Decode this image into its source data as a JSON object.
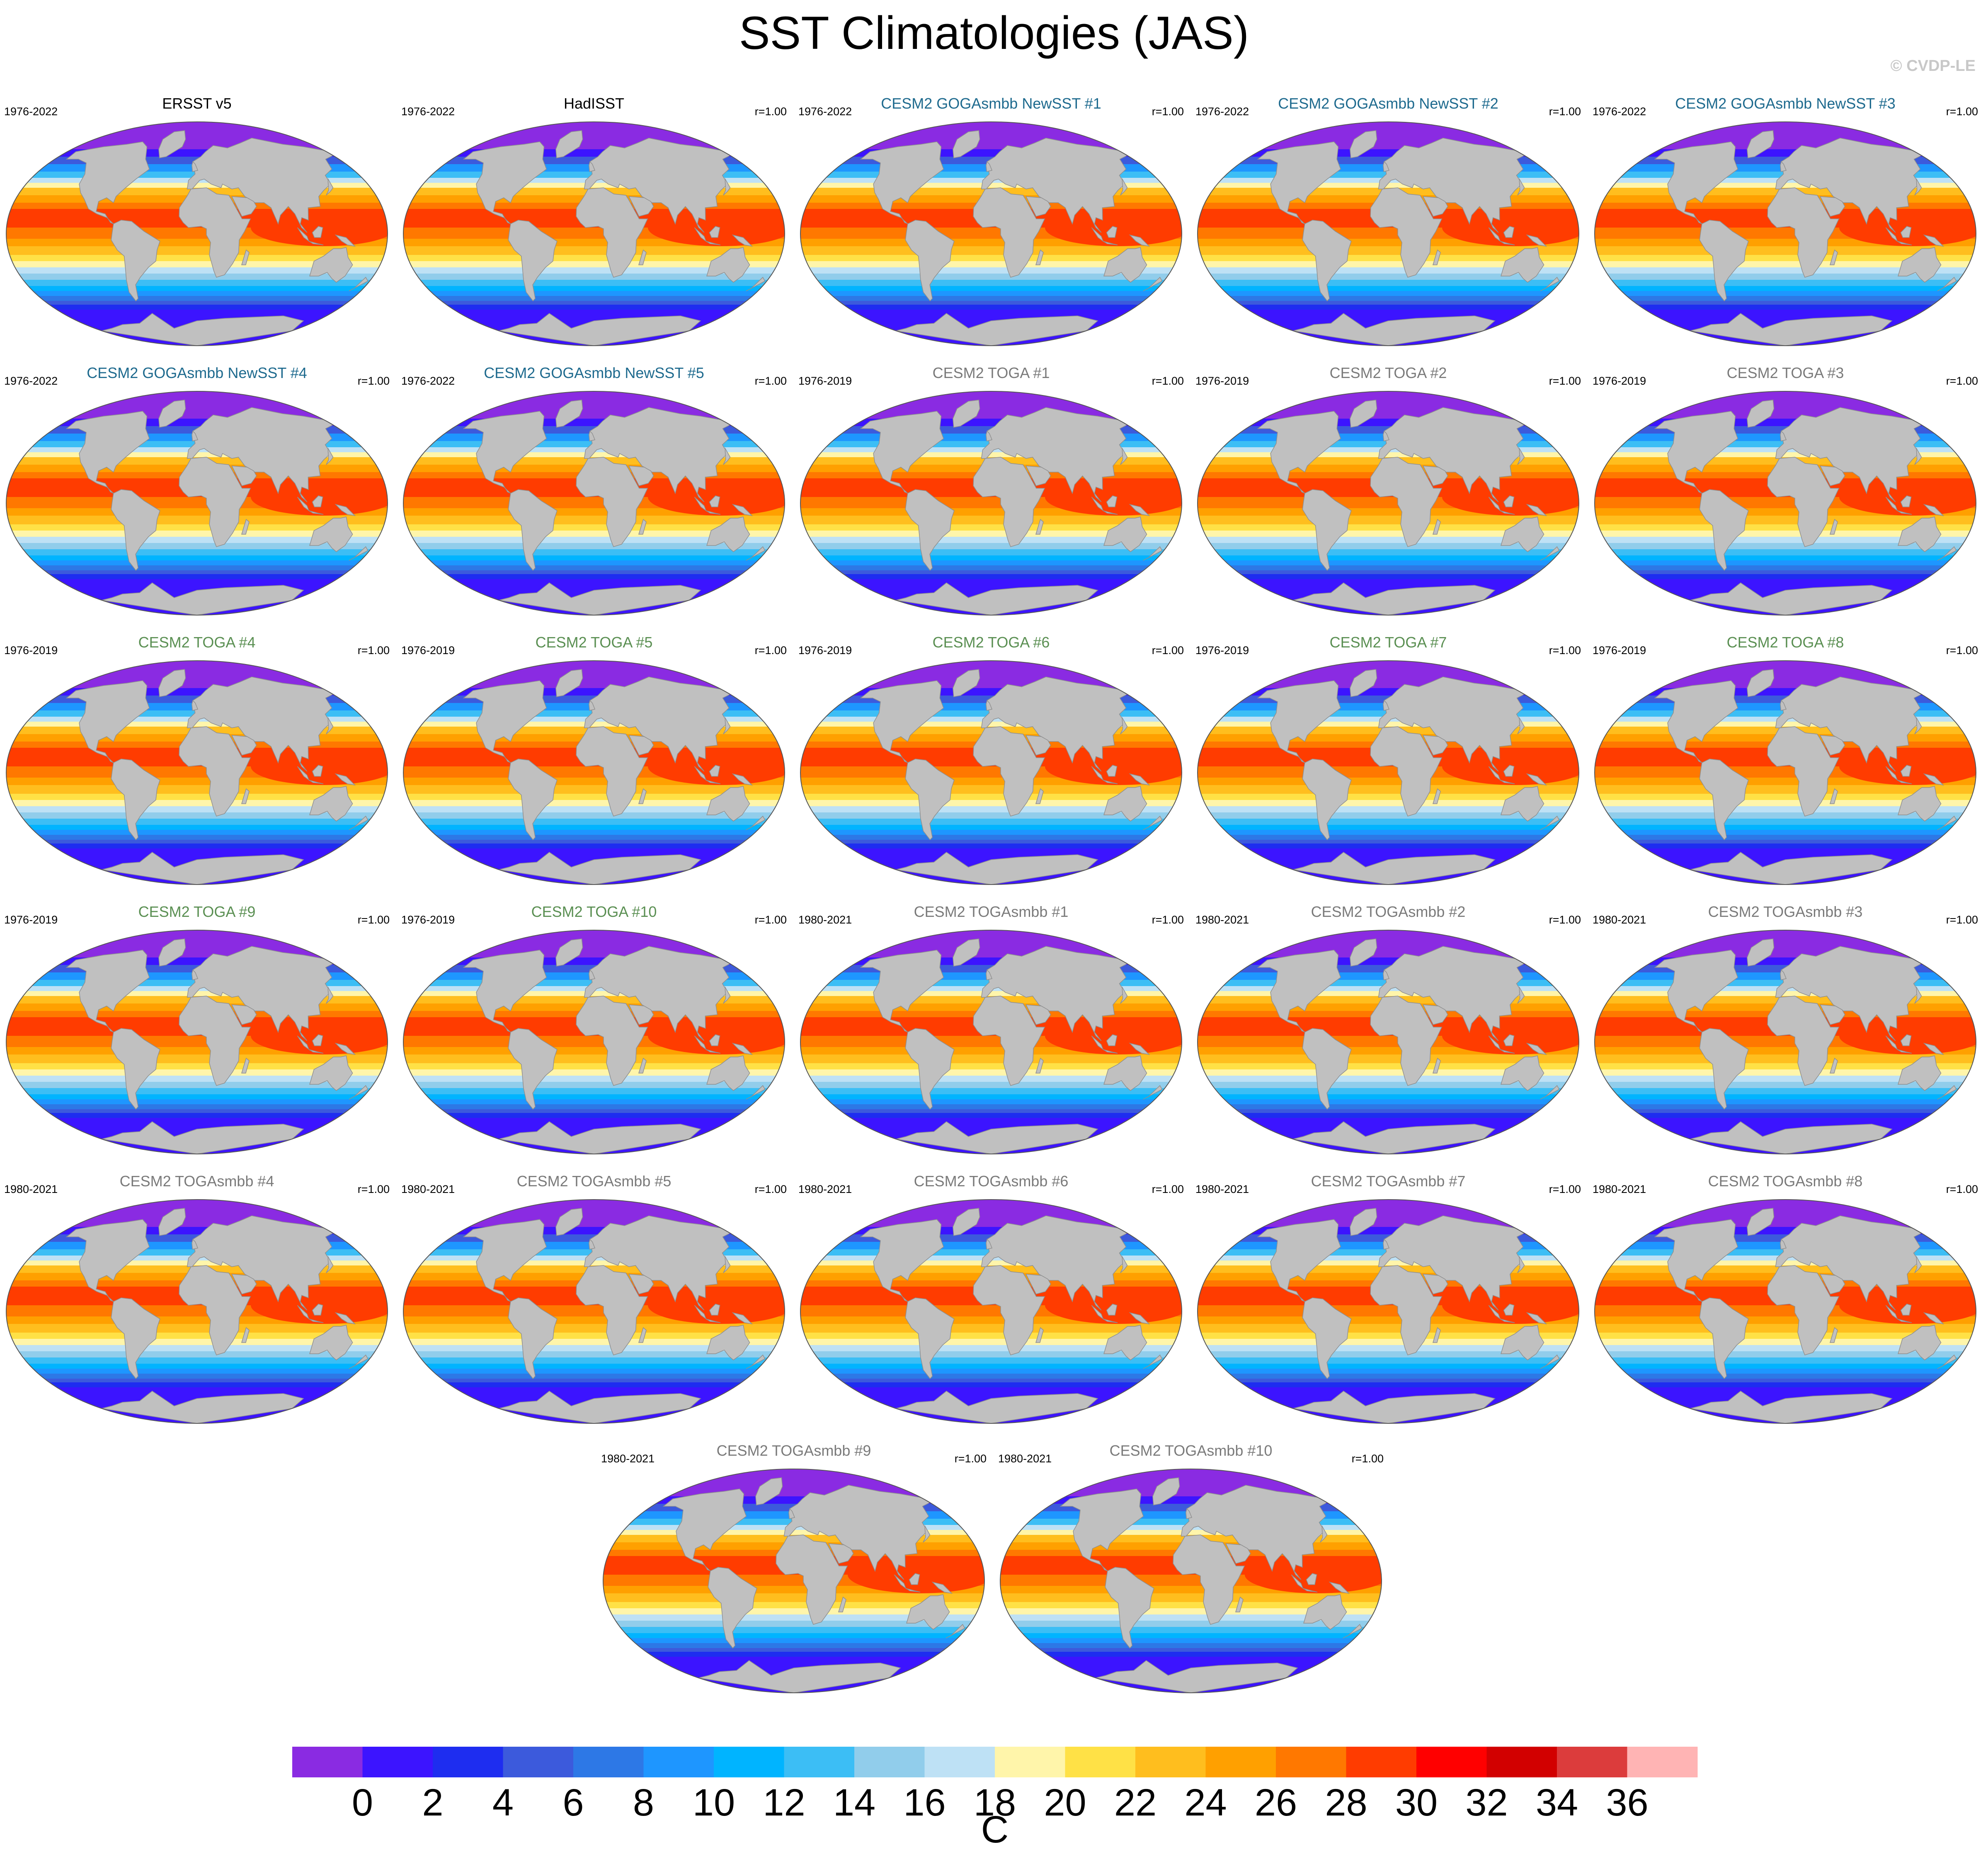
{
  "title": "SST Climatologies (JAS)",
  "watermark": "© CVDP-LE",
  "title_colors": {
    "observations": "#000000",
    "goga": "#1e6a8e",
    "toga": "#5a8f52",
    "togasmbb": "#7a7a7a"
  },
  "panels": [
    {
      "title": "ERSST v5",
      "group": "observations",
      "period": "1976-2022",
      "corr": ""
    },
    {
      "title": "HadISST",
      "group": "observations",
      "period": "1976-2022",
      "corr": "r=1.00"
    },
    {
      "title": "CESM2 GOGAsmbb NewSST #1",
      "group": "goga",
      "period": "1976-2022",
      "corr": "r=1.00"
    },
    {
      "title": "CESM2 GOGAsmbb NewSST #2",
      "group": "goga",
      "period": "1976-2022",
      "corr": "r=1.00"
    },
    {
      "title": "CESM2 GOGAsmbb NewSST #3",
      "group": "goga",
      "period": "1976-2022",
      "corr": "r=1.00"
    },
    {
      "title": "CESM2 GOGAsmbb NewSST #4",
      "group": "goga",
      "period": "1976-2022",
      "corr": "r=1.00"
    },
    {
      "title": "CESM2 GOGAsmbb NewSST #5",
      "group": "goga",
      "period": "1976-2022",
      "corr": "r=1.00"
    },
    {
      "title": "CESM2 TOGA #1",
      "group": "togasmbb",
      "period": "1976-2019",
      "corr": "r=1.00"
    },
    {
      "title": "CESM2 TOGA #2",
      "group": "togasmbb",
      "period": "1976-2019",
      "corr": "r=1.00"
    },
    {
      "title": "CESM2 TOGA #3",
      "group": "togasmbb",
      "period": "1976-2019",
      "corr": "r=1.00"
    },
    {
      "title": "CESM2 TOGA #4",
      "group": "toga",
      "period": "1976-2019",
      "corr": "r=1.00"
    },
    {
      "title": "CESM2 TOGA #5",
      "group": "toga",
      "period": "1976-2019",
      "corr": "r=1.00"
    },
    {
      "title": "CESM2 TOGA #6",
      "group": "toga",
      "period": "1976-2019",
      "corr": "r=1.00"
    },
    {
      "title": "CESM2 TOGA #7",
      "group": "toga",
      "period": "1976-2019",
      "corr": "r=1.00"
    },
    {
      "title": "CESM2 TOGA #8",
      "group": "toga",
      "period": "1976-2019",
      "corr": "r=1.00"
    },
    {
      "title": "CESM2 TOGA #9",
      "group": "toga",
      "period": "1976-2019",
      "corr": "r=1.00"
    },
    {
      "title": "CESM2 TOGA #10",
      "group": "toga",
      "period": "1976-2019",
      "corr": "r=1.00"
    },
    {
      "title": "CESM2 TOGAsmbb #1",
      "group": "togasmbb",
      "period": "1980-2021",
      "corr": "r=1.00"
    },
    {
      "title": "CESM2 TOGAsmbb #2",
      "group": "togasmbb",
      "period": "1980-2021",
      "corr": "r=1.00"
    },
    {
      "title": "CESM2 TOGAsmbb #3",
      "group": "togasmbb",
      "period": "1980-2021",
      "corr": "r=1.00"
    },
    {
      "title": "CESM2 TOGAsmbb #4",
      "group": "togasmbb",
      "period": "1980-2021",
      "corr": "r=1.00"
    },
    {
      "title": "CESM2 TOGAsmbb #5",
      "group": "togasmbb",
      "period": "1980-2021",
      "corr": "r=1.00"
    },
    {
      "title": "CESM2 TOGAsmbb #6",
      "group": "togasmbb",
      "period": "1980-2021",
      "corr": "r=1.00"
    },
    {
      "title": "CESM2 TOGAsmbb #7",
      "group": "togasmbb",
      "period": "1980-2021",
      "corr": "r=1.00"
    },
    {
      "title": "CESM2 TOGAsmbb #8",
      "group": "togasmbb",
      "period": "1980-2021",
      "corr": "r=1.00"
    },
    {
      "title": "CESM2 TOGAsmbb #9",
      "group": "togasmbb",
      "period": "1980-2021",
      "corr": "r=1.00"
    },
    {
      "title": "CESM2 TOGAsmbb #10",
      "group": "togasmbb",
      "period": "1980-2021",
      "corr": "r=1.00"
    }
  ],
  "map": {
    "projection": "robinson-like ellipse",
    "land_color": "#c0c0c0",
    "sst_bands": [
      {
        "lat_max": 90,
        "value": -1
      },
      {
        "lat_max": 68,
        "value": 1
      },
      {
        "lat_max": 62,
        "value": 5
      },
      {
        "lat_max": 56,
        "value": 9
      },
      {
        "lat_max": 50,
        "value": 13
      },
      {
        "lat_max": 45,
        "value": 17
      },
      {
        "lat_max": 41,
        "value": 19
      },
      {
        "lat_max": 37,
        "value": 23
      },
      {
        "lat_max": 31,
        "value": 25
      },
      {
        "lat_max": 25,
        "value": 27
      },
      {
        "lat_max": 20,
        "value": 29
      },
      {
        "lat_max": 5,
        "value": 27
      },
      {
        "lat_max": -4,
        "value": 25
      },
      {
        "lat_max": -10,
        "value": 23
      },
      {
        "lat_max": -17,
        "value": 21
      },
      {
        "lat_max": -22,
        "value": 19
      },
      {
        "lat_max": -27,
        "value": 17
      },
      {
        "lat_max": -32,
        "value": 15
      },
      {
        "lat_max": -37,
        "value": 13
      },
      {
        "lat_max": -42,
        "value": 11
      },
      {
        "lat_max": -46,
        "value": 9
      },
      {
        "lat_max": -50,
        "value": 7
      },
      {
        "lat_max": -54,
        "value": 5
      },
      {
        "lat_max": -57,
        "value": 3
      },
      {
        "lat_max": -61,
        "value": 1
      },
      {
        "lat_max": -90,
        "value": -1
      }
    ],
    "warm_pool": {
      "value": 29,
      "lat_range": [
        -10,
        20
      ],
      "lon_range": [
        90,
        200
      ]
    }
  },
  "colorbar": {
    "unit": "C",
    "tick_labels": [
      "0",
      "2",
      "4",
      "6",
      "8",
      "10",
      "12",
      "14",
      "16",
      "18",
      "20",
      "22",
      "24",
      "26",
      "28",
      "30",
      "32",
      "34",
      "36"
    ],
    "bin_edges": [
      -1,
      0,
      2,
      4,
      6,
      8,
      10,
      12,
      14,
      16,
      18,
      20,
      22,
      24,
      26,
      28,
      30,
      32,
      34,
      36,
      38
    ],
    "colors": [
      "#8a2be2",
      "#3c14ff",
      "#1e2df0",
      "#3c5adc",
      "#2d78e6",
      "#1e96ff",
      "#00b4ff",
      "#3cbef5",
      "#91cdeb",
      "#bee1f5",
      "#fff5aa",
      "#ffe146",
      "#ffbe1e",
      "#ffa000",
      "#ff7800",
      "#ff3c00",
      "#ff0000",
      "#d20000",
      "#dc3c3c",
      "#ffb4b4"
    ]
  }
}
